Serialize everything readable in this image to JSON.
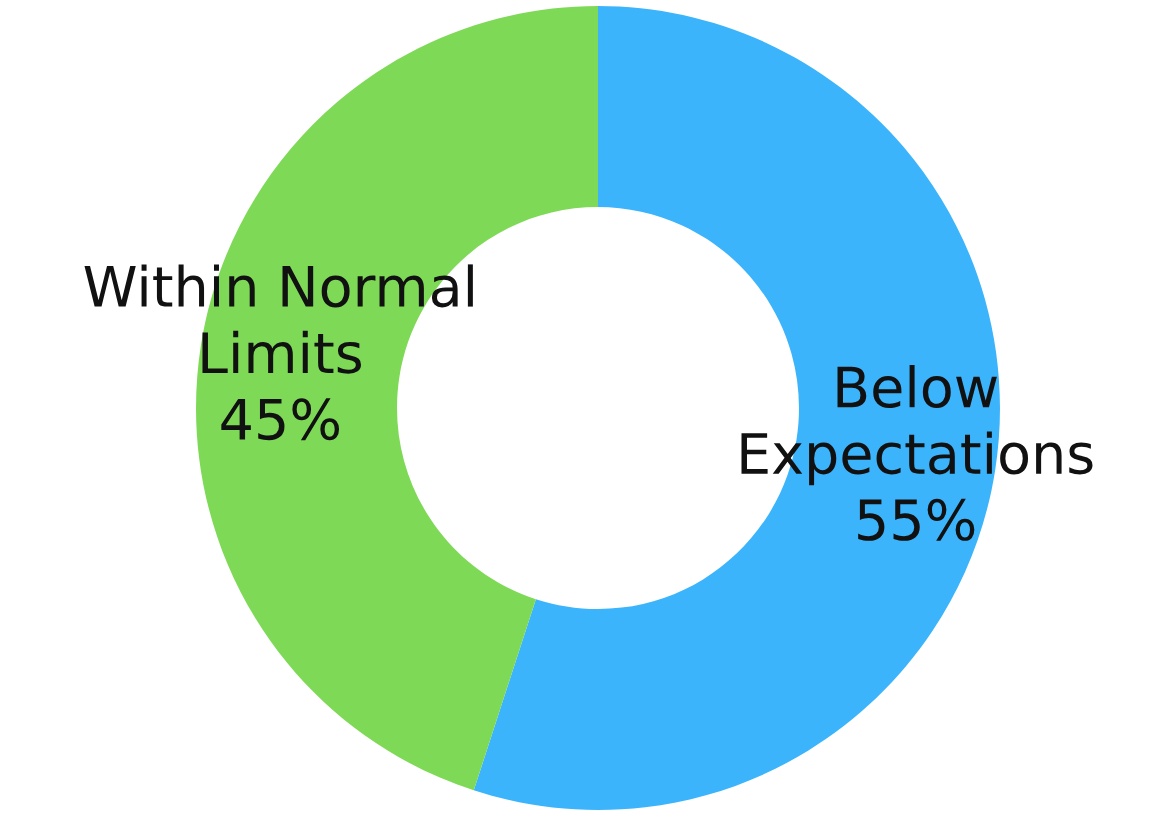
{
  "chart_data": {
    "type": "donut",
    "categories": [
      "Below Expectations",
      "Within Normal Limits"
    ],
    "values": [
      55,
      45
    ],
    "colors": [
      "#3bb4fc",
      "#7ed957"
    ],
    "value_labels": [
      "55%",
      "45%"
    ]
  }
}
